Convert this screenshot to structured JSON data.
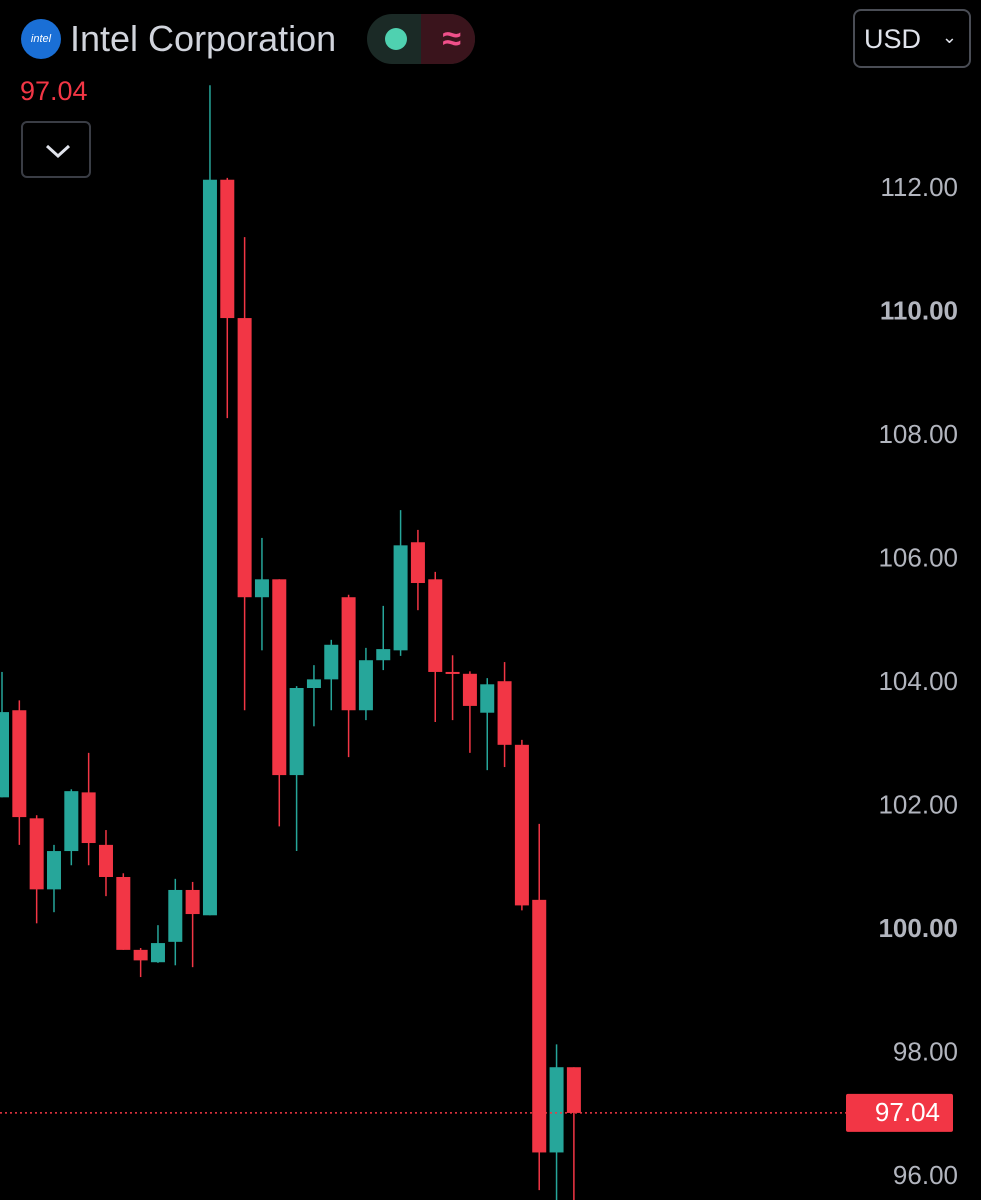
{
  "chart_data": {
    "type": "candlestick",
    "title": "Intel Corporation",
    "logo_text": "intel",
    "currency": "USD",
    "last_price": 97.04,
    "up_color": "#26a69a",
    "down_color": "#f23645",
    "open": [
      102.15,
      103.56,
      101.81,
      100.66,
      101.28,
      102.23,
      101.38,
      100.86,
      99.68,
      99.48,
      99.81,
      100.65,
      100.24,
      112.15,
      109.91,
      105.39,
      105.68,
      102.51,
      103.92,
      104.06,
      105.39,
      103.56,
      104.37,
      104.53,
      106.28,
      105.68,
      104.18,
      104.15,
      103.52,
      104.03,
      103.0,
      100.49,
      96.4,
      97.78
    ],
    "high": [
      104.18,
      103.72,
      101.86,
      101.38,
      102.28,
      102.87,
      101.62,
      100.92,
      99.71,
      100.08,
      100.83,
      100.78,
      113.68,
      112.18,
      111.22,
      106.35,
      105.68,
      103.95,
      104.29,
      104.7,
      105.43,
      104.57,
      105.25,
      106.8,
      106.48,
      105.8,
      104.45,
      104.19,
      104.08,
      104.34,
      103.08,
      101.72,
      98.15,
      97.78
    ],
    "low": [
      102.15,
      101.38,
      100.11,
      100.29,
      101.05,
      101.05,
      100.55,
      99.68,
      99.24,
      99.47,
      99.43,
      99.4,
      100.24,
      108.29,
      103.56,
      104.53,
      101.68,
      101.28,
      103.3,
      103.56,
      102.8,
      103.4,
      104.21,
      104.44,
      105.18,
      103.37,
      103.4,
      102.87,
      102.59,
      102.64,
      100.32,
      95.79,
      95.5,
      95.5
    ],
    "close": [
      103.53,
      101.83,
      100.66,
      101.28,
      102.25,
      101.41,
      100.86,
      99.68,
      99.51,
      99.79,
      100.65,
      100.26,
      112.15,
      109.91,
      105.39,
      105.68,
      102.51,
      103.92,
      104.06,
      104.62,
      103.56,
      104.37,
      104.55,
      106.23,
      105.62,
      104.18,
      104.17,
      103.63,
      103.98,
      103.0,
      100.4,
      96.4,
      97.78,
      97.04
    ],
    "ylim": [
      95.63,
      115.06
    ],
    "yticks": [
      {
        "value": 96,
        "label": "96.00"
      },
      {
        "value": 98,
        "label": "98.00"
      },
      {
        "value": 100,
        "label": "100.00"
      },
      {
        "value": 102,
        "label": "102.00"
      },
      {
        "value": 104,
        "label": "104.00"
      },
      {
        "value": 106,
        "label": "106.00"
      },
      {
        "value": 108,
        "label": "108.00"
      },
      {
        "value": 110,
        "label": "110.00"
      },
      {
        "value": 112,
        "label": "112.00"
      }
    ]
  }
}
